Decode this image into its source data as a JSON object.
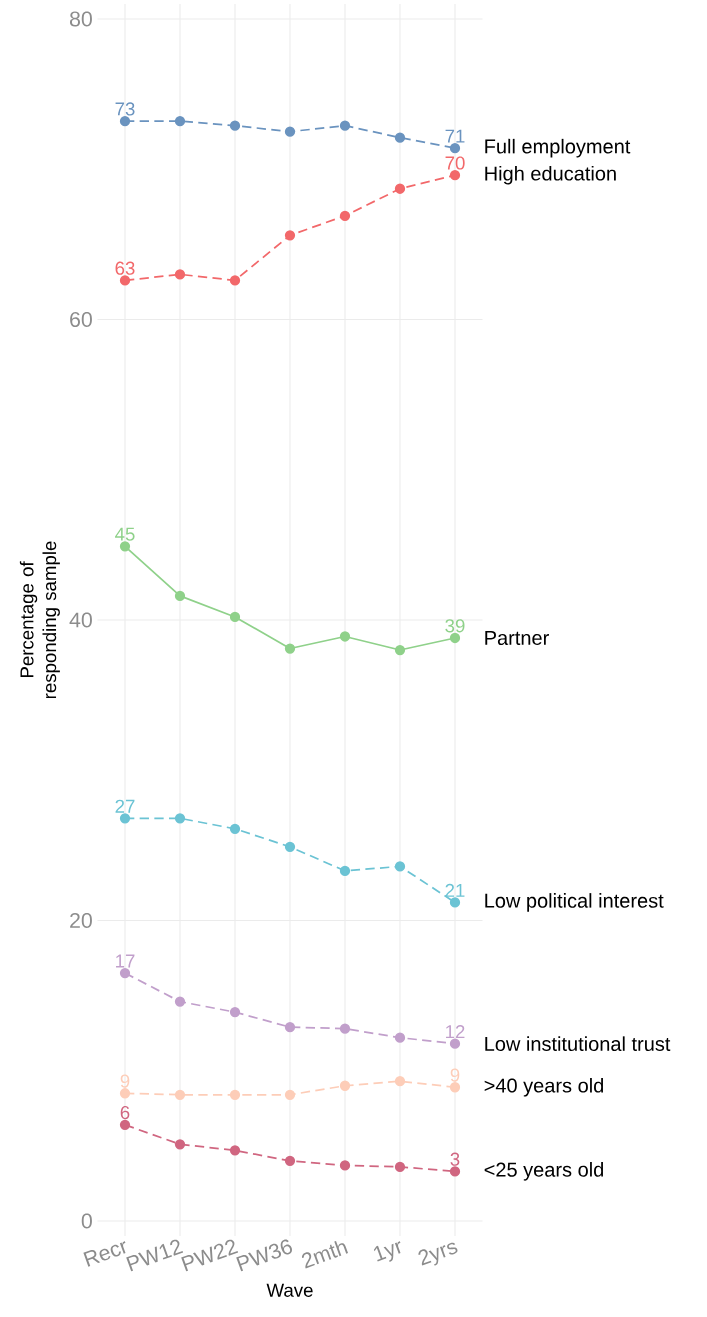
{
  "chart_data": {
    "type": "line",
    "xlabel": "Wave",
    "ylabel": "Percentage of responding sample",
    "categories": [
      "Recr",
      "PW12",
      "PW22",
      "PW36",
      "2mth",
      "1yr",
      "2yrs"
    ],
    "ylim": [
      -1,
      81
    ],
    "yticks": [
      0,
      20,
      40,
      60,
      80
    ],
    "grid": true,
    "marker": "circle",
    "series": [
      {
        "name": "Full employment",
        "color": "#6a93bf",
        "line_style": "dashed",
        "values": [
          73.2,
          73.2,
          72.9,
          72.5,
          72.9,
          72.1,
          71.4
        ],
        "value_labels": [
          "73",
          null,
          null,
          null,
          null,
          null,
          "71"
        ]
      },
      {
        "name": "High education",
        "color": "#f2686a",
        "line_style": "dashed",
        "values": [
          62.6,
          63.0,
          62.6,
          65.6,
          66.9,
          68.7,
          69.6
        ],
        "value_labels": [
          "63",
          null,
          null,
          null,
          null,
          null,
          "70"
        ]
      },
      {
        "name": "Partner",
        "color": "#8fd18a",
        "line_style": "solid",
        "values": [
          44.9,
          41.6,
          40.2,
          38.1,
          38.9,
          38.0,
          38.8
        ],
        "value_labels": [
          "45",
          null,
          null,
          null,
          null,
          null,
          "39"
        ]
      },
      {
        "name": "Low political interest",
        "color": "#6bc3d4",
        "line_style": "dashed",
        "values": [
          26.8,
          26.8,
          26.1,
          24.9,
          23.3,
          23.6,
          21.2
        ],
        "value_labels": [
          "27",
          null,
          null,
          null,
          null,
          null,
          "21"
        ]
      },
      {
        "name": "Low institutional trust",
        "color": "#c19fcb",
        "line_style": "dashed",
        "values": [
          16.5,
          14.6,
          13.9,
          12.9,
          12.8,
          12.2,
          11.8
        ],
        "value_labels": [
          "17",
          null,
          null,
          null,
          null,
          null,
          "12"
        ]
      },
      {
        "name": ">40 years old",
        "color": "#fdcdb8",
        "line_style": "dashed",
        "values": [
          8.5,
          8.4,
          8.4,
          8.4,
          9.0,
          9.3,
          8.9
        ],
        "value_labels": [
          "9",
          null,
          null,
          null,
          null,
          null,
          "9"
        ]
      },
      {
        "name": "<25 years old",
        "color": "#d06680",
        "line_style": "dashed",
        "values": [
          6.4,
          5.1,
          4.7,
          4.0,
          3.7,
          3.6,
          3.3
        ],
        "value_labels": [
          "6",
          null,
          null,
          null,
          null,
          null,
          "3"
        ]
      }
    ]
  }
}
